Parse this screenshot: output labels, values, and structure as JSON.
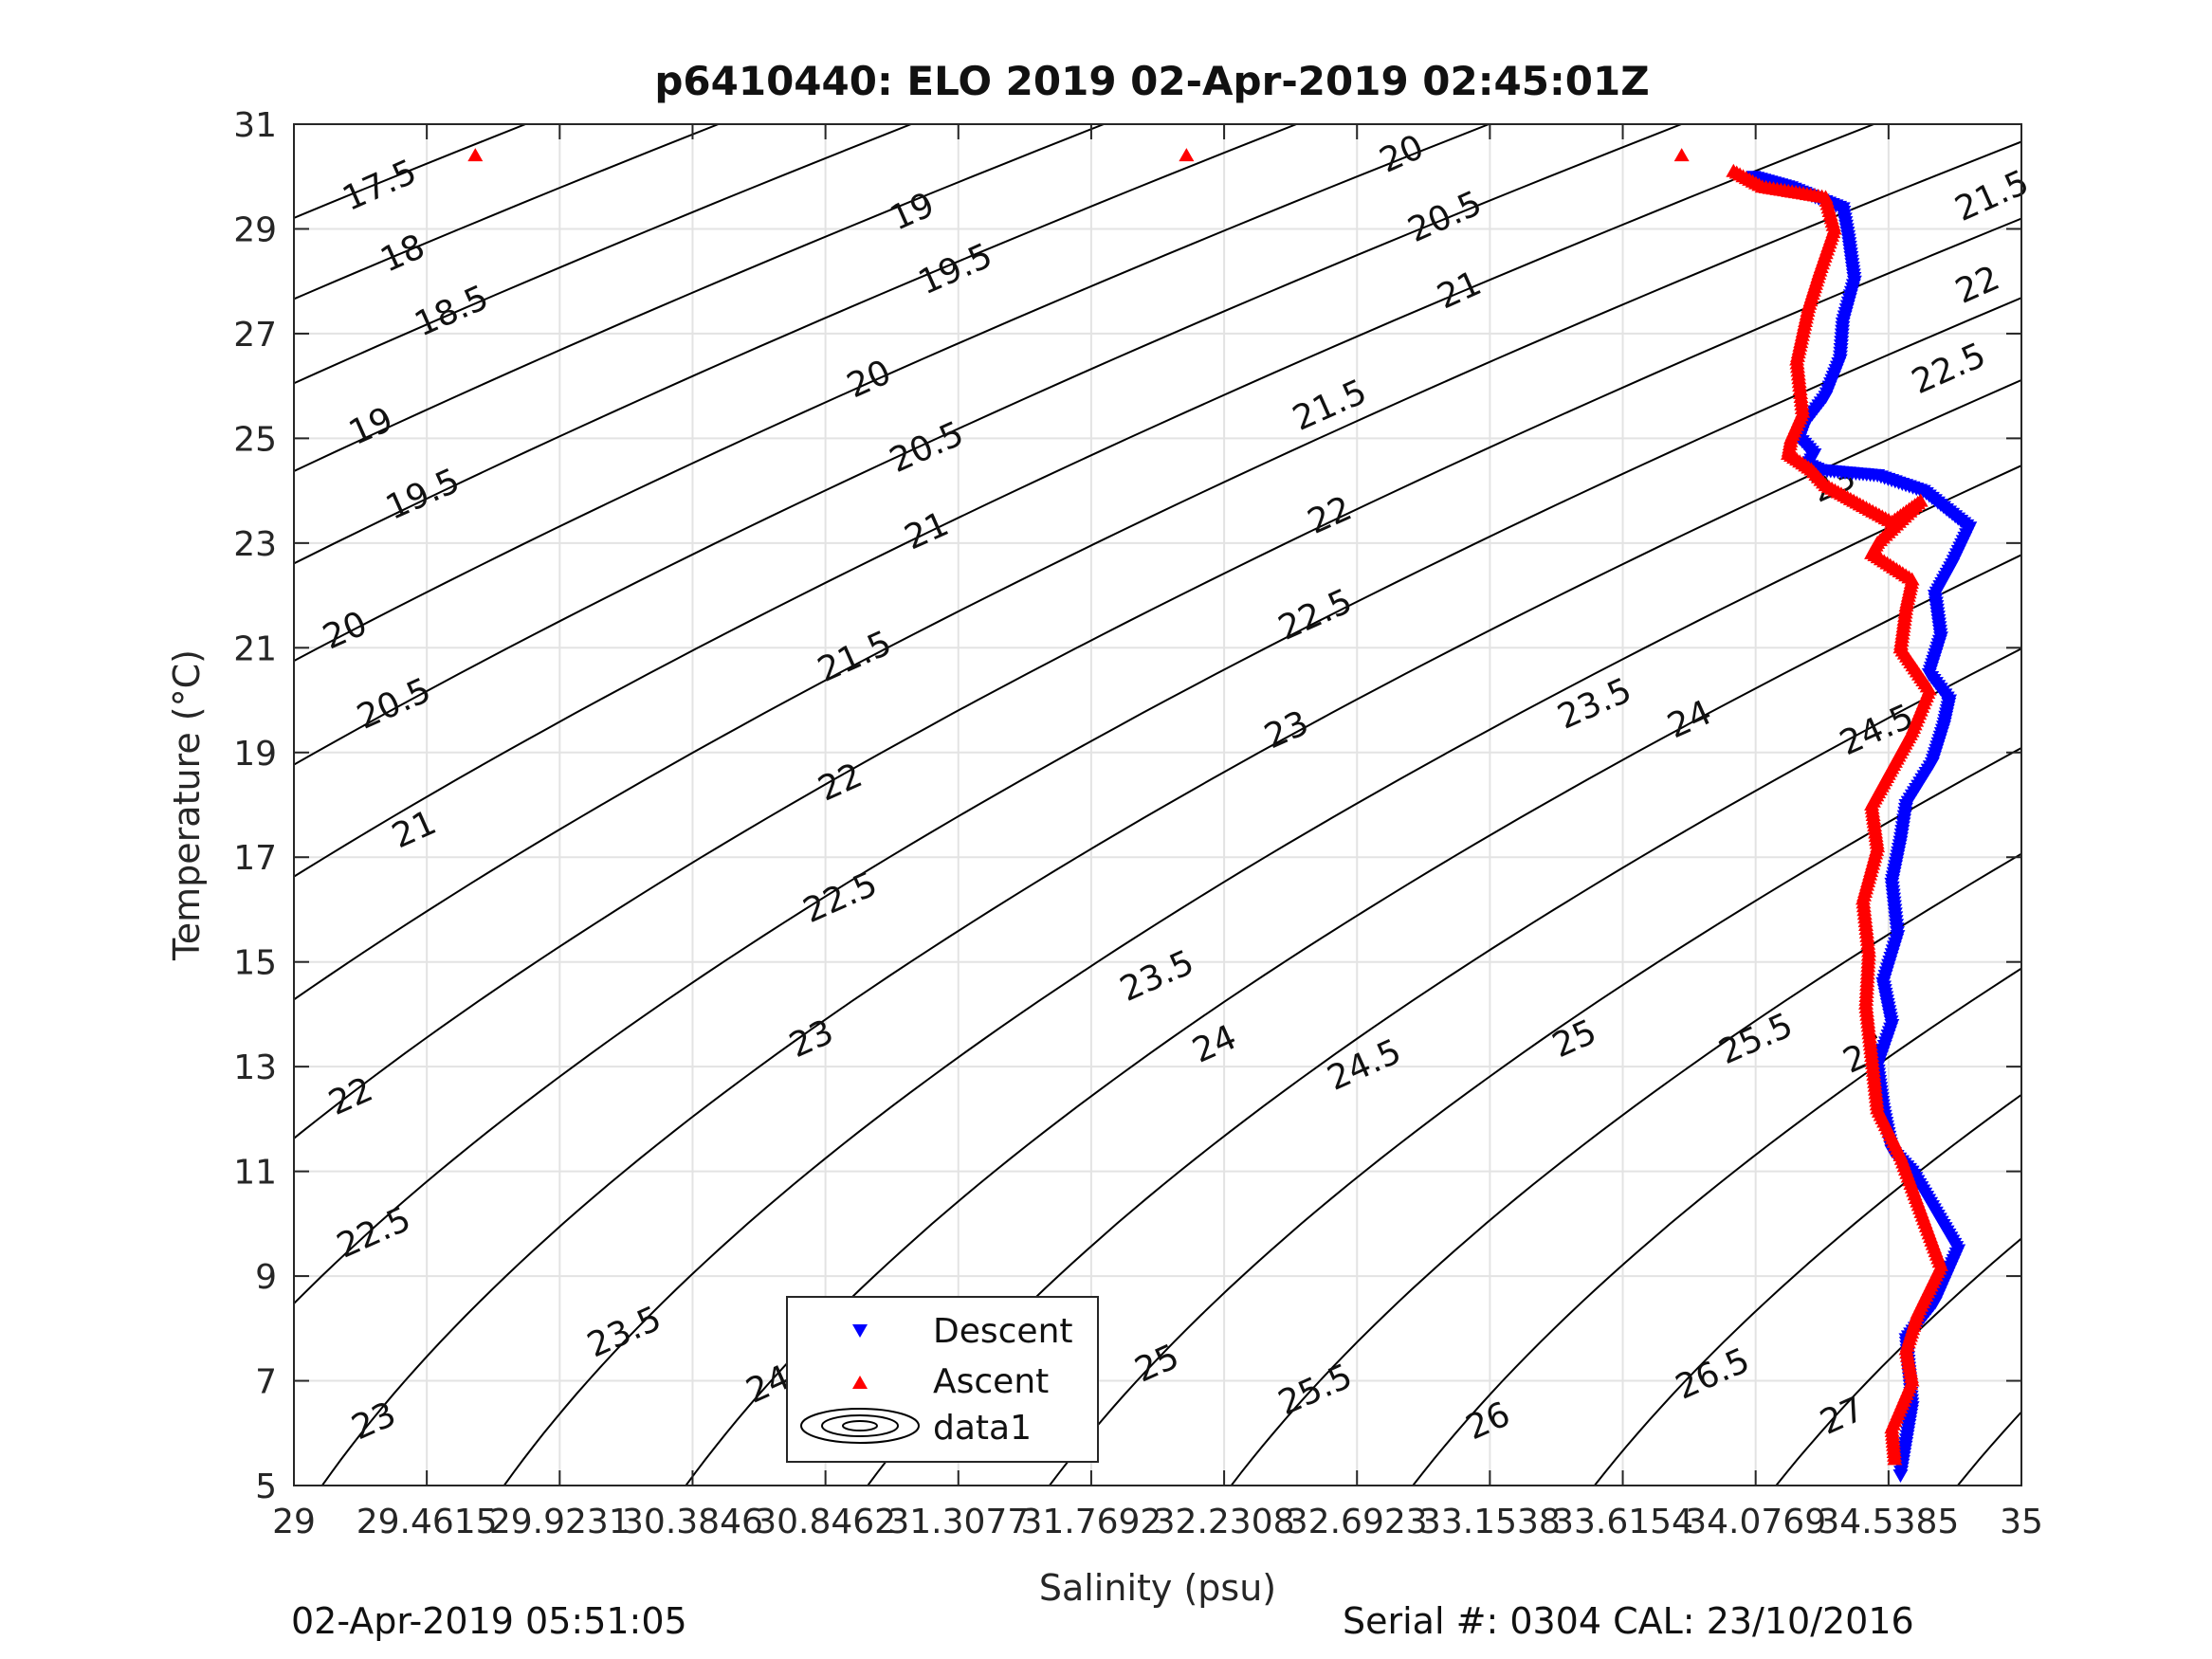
{
  "chart_data": {
    "type": "scatter",
    "title": "p6410440: ELO 2019 02-Apr-2019 02:45:01Z",
    "xlabel": "Salinity (psu)",
    "ylabel": "Temperature (°C)",
    "xlim": [
      29,
      35
    ],
    "ylim": [
      5,
      31
    ],
    "xticks": [
      29,
      29.4615,
      29.9231,
      30.3846,
      30.8462,
      31.3077,
      31.7692,
      32.2308,
      32.6923,
      33.1538,
      33.6154,
      34.0769,
      34.5385,
      35
    ],
    "xtick_labels": [
      "29",
      "29.4615",
      "29.9231",
      "30.3846",
      "30.8462",
      "31.3077",
      "31.7692",
      "32.2308",
      "32.6923",
      "33.1538",
      "33.6154",
      "34.0769",
      "34.5385",
      "35"
    ],
    "yticks": [
      5,
      7,
      9,
      11,
      13,
      15,
      17,
      19,
      21,
      23,
      25,
      27,
      29,
      31
    ],
    "ytick_labels": [
      "5",
      "7",
      "9",
      "11",
      "13",
      "15",
      "17",
      "19",
      "21",
      "23",
      "25",
      "27",
      "29",
      "31"
    ],
    "grid": true,
    "legend_placement": "bottom-center",
    "contours": {
      "quantity": "sigma-t",
      "color": "#000000",
      "levels": [
        17.5,
        18,
        18.5,
        19,
        19.5,
        20,
        20.5,
        21,
        21.5,
        22,
        22.5,
        23,
        23.5,
        24,
        24.5,
        25,
        25.5,
        26,
        26.5,
        27,
        27.5
      ],
      "labels": [
        {
          "text": "17.5",
          "s": 29.3,
          "t": 29.8
        },
        {
          "text": "18",
          "s": 29.38,
          "t": 28.5
        },
        {
          "text": "18.5",
          "s": 29.55,
          "t": 27.4
        },
        {
          "text": "19",
          "s": 29.27,
          "t": 25.2
        },
        {
          "text": "19.5",
          "s": 29.45,
          "t": 23.9
        },
        {
          "text": "20",
          "s": 29.18,
          "t": 21.3
        },
        {
          "text": "20.5",
          "s": 29.35,
          "t": 19.9
        },
        {
          "text": "21",
          "s": 29.42,
          "t": 17.5
        },
        {
          "text": "22",
          "s": 29.2,
          "t": 12.4
        },
        {
          "text": "22.5",
          "s": 29.28,
          "t": 9.8
        },
        {
          "text": "23",
          "s": 29.28,
          "t": 6.2
        },
        {
          "text": "19",
          "s": 31.15,
          "t": 29.3
        },
        {
          "text": "19.5",
          "s": 31.3,
          "t": 28.2
        },
        {
          "text": "20",
          "s": 31.0,
          "t": 26.1
        },
        {
          "text": "20.5",
          "s": 31.2,
          "t": 24.8
        },
        {
          "text": "21",
          "s": 31.2,
          "t": 23.2
        },
        {
          "text": "21.5",
          "s": 30.95,
          "t": 20.8
        },
        {
          "text": "22",
          "s": 30.9,
          "t": 18.4
        },
        {
          "text": "22.5",
          "s": 30.9,
          "t": 16.2
        },
        {
          "text": "23",
          "s": 30.8,
          "t": 13.5
        },
        {
          "text": "23.5",
          "s": 30.15,
          "t": 7.9
        },
        {
          "text": "24",
          "s": 30.65,
          "t": 6.9
        },
        {
          "text": "24.5",
          "s": 31.2,
          "t": 6.3
        },
        {
          "text": "20",
          "s": 32.85,
          "t": 30.4
        },
        {
          "text": "20.5",
          "s": 33.0,
          "t": 29.2
        },
        {
          "text": "21",
          "s": 33.05,
          "t": 27.8
        },
        {
          "text": "21.5",
          "s": 32.6,
          "t": 25.6
        },
        {
          "text": "22",
          "s": 32.6,
          "t": 23.5
        },
        {
          "text": "22.5",
          "s": 32.55,
          "t": 21.6
        },
        {
          "text": "23",
          "s": 32.45,
          "t": 19.4
        },
        {
          "text": "23.5",
          "s": 32.0,
          "t": 14.7
        },
        {
          "text": "24",
          "s": 32.2,
          "t": 13.4
        },
        {
          "text": "24.5",
          "s": 32.72,
          "t": 13.0
        },
        {
          "text": "25",
          "s": 33.45,
          "t": 13.5
        },
        {
          "text": "25",
          "s": 32.0,
          "t": 7.3
        },
        {
          "text": "25.5",
          "s": 32.55,
          "t": 6.8
        },
        {
          "text": "26",
          "s": 33.15,
          "t": 6.2
        },
        {
          "text": "23.5",
          "s": 33.52,
          "t": 19.9
        },
        {
          "text": "24",
          "s": 33.85,
          "t": 19.6
        },
        {
          "text": "24.5",
          "s": 34.5,
          "t": 19.4
        },
        {
          "text": "25.5",
          "s": 34.08,
          "t": 13.5
        },
        {
          "text": "26",
          "s": 34.46,
          "t": 13.2
        },
        {
          "text": "26.5",
          "s": 33.93,
          "t": 7.1
        },
        {
          "text": "27",
          "s": 34.38,
          "t": 6.3
        },
        {
          "text": "21.5",
          "s": 34.9,
          "t": 29.6
        },
        {
          "text": "22",
          "s": 34.85,
          "t": 27.9
        },
        {
          "text": "22.5",
          "s": 34.75,
          "t": 26.3
        },
        {
          "text": "23",
          "s": 34.35,
          "t": 24.1
        }
      ]
    },
    "series": [
      {
        "name": "Descent",
        "marker": "triangle-down",
        "color": "#0000ff",
        "x": [
          34.07,
          34.2,
          34.38,
          34.4,
          34.42,
          34.38,
          34.37,
          34.32,
          34.25,
          34.23,
          34.28,
          34.26,
          34.3,
          34.5,
          34.66,
          34.82,
          34.76,
          34.7,
          34.72,
          34.68,
          34.75,
          34.73,
          34.69,
          34.6,
          34.58,
          34.55,
          34.57,
          34.52,
          34.55,
          34.5,
          34.52,
          34.55,
          34.62,
          34.78,
          34.7,
          34.6,
          34.62,
          34.58
        ],
        "y": [
          30.0,
          29.8,
          29.4,
          28.8,
          28.0,
          27.2,
          26.5,
          25.8,
          25.3,
          25.0,
          24.7,
          24.5,
          24.4,
          24.3,
          24.0,
          23.3,
          22.6,
          22.0,
          21.2,
          20.5,
          20.0,
          19.5,
          18.8,
          18.0,
          17.3,
          16.5,
          15.5,
          14.6,
          13.8,
          13.0,
          12.2,
          11.4,
          11.0,
          9.5,
          8.5,
          7.8,
          6.5,
          5.2
        ]
      },
      {
        "name": "Ascent",
        "marker": "triangle-up",
        "color": "#ff0000",
        "x": [
          29.63,
          32.1,
          33.82,
          34.0,
          34.1,
          34.32,
          34.35,
          34.3,
          34.26,
          34.22,
          34.24,
          34.2,
          34.19,
          34.27,
          34.32,
          34.45,
          34.55,
          34.65,
          34.5,
          34.48,
          34.62,
          34.6,
          34.58,
          34.68,
          34.62,
          34.55,
          34.48,
          34.5,
          34.45,
          34.47,
          34.46,
          34.48,
          34.5,
          34.58,
          34.72,
          34.64,
          34.6,
          34.62,
          34.55,
          34.56
        ],
        "y": [
          30.4,
          30.4,
          30.4,
          30.1,
          29.8,
          29.6,
          29.0,
          28.2,
          27.5,
          26.5,
          25.5,
          25.0,
          24.7,
          24.4,
          24.1,
          23.7,
          23.4,
          23.8,
          23.0,
          22.8,
          22.3,
          21.8,
          21.0,
          20.2,
          19.4,
          18.7,
          18.0,
          17.2,
          16.2,
          15.2,
          14.2,
          13.2,
          12.2,
          11.3,
          9.2,
          8.3,
          7.6,
          7.0,
          6.1,
          5.5
        ]
      }
    ],
    "legend": {
      "entries": [
        {
          "label": "Descent",
          "marker": "triangle-down",
          "color": "#0000ff"
        },
        {
          "label": "Ascent",
          "marker": "triangle-up",
          "color": "#ff0000"
        },
        {
          "label": "data1",
          "marker": "contour",
          "color": "#000000"
        }
      ]
    }
  },
  "footer": {
    "timestamp": "02-Apr-2019 05:51:05",
    "serial": "Serial #: 0304  CAL: 23/10/2016"
  }
}
